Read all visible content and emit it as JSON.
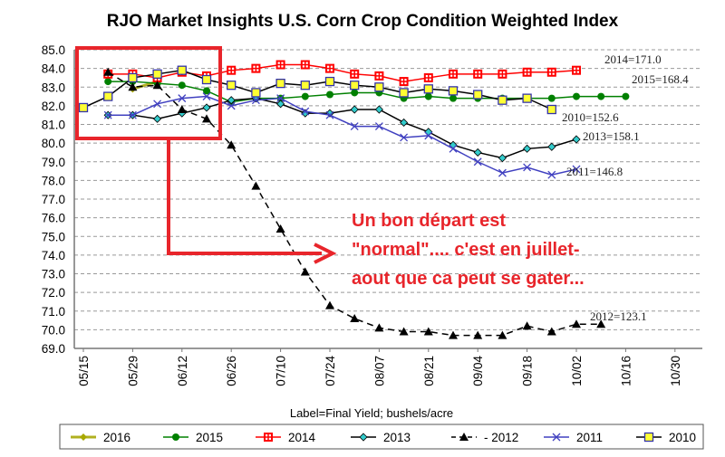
{
  "chart_data": {
    "type": "line",
    "title": "RJO Market Insights U.S. Corn Crop Condition Weighted Index",
    "xlabel": "Label=Final Yield; bushels/acre",
    "ylabel": "",
    "ylim": [
      69.0,
      85.0
    ],
    "y_ticks": [
      "85.0",
      "84.0",
      "83.0",
      "82.0",
      "81.0",
      "80.0",
      "79.0",
      "78.0",
      "77.0",
      "76.0",
      "75.0",
      "74.0",
      "73.0",
      "72.0",
      "71.0",
      "70.0",
      "69.0"
    ],
    "x_ticks": [
      "05/15",
      "05/29",
      "06/12",
      "06/26",
      "07/10",
      "07/24",
      "08/07",
      "08/21",
      "09/04",
      "09/18",
      "10/02",
      "10/16",
      "10/30"
    ],
    "x_unit": "weeks since 05/15",
    "grid": true,
    "legend_position": "bottom",
    "series": [
      {
        "name": "2016",
        "color": "#a8a800",
        "marker": "diamond",
        "start_week": 2,
        "values": [
          82.9,
          83.3
        ],
        "label": ""
      },
      {
        "name": "2015",
        "color": "#008000",
        "marker": "circle",
        "start_week": 1,
        "values": [
          83.3,
          83.3,
          83.2,
          83.1,
          82.8,
          82.2,
          82.4,
          82.4,
          82.5,
          82.6,
          82.7,
          82.7,
          82.4,
          82.5,
          82.4,
          82.4,
          82.4,
          82.4,
          82.4,
          82.5,
          82.5,
          82.5
        ],
        "label": "2015=168.4"
      },
      {
        "name": "2014",
        "color": "#ff0000",
        "marker": "plus-square",
        "start_week": 1,
        "values": [
          83.7,
          83.7,
          83.5,
          83.8,
          83.6,
          83.9,
          84.0,
          84.2,
          84.2,
          84.0,
          83.7,
          83.6,
          83.3,
          83.5,
          83.7,
          83.7,
          83.7,
          83.8,
          83.8,
          83.9
        ],
        "label": "2014=171.0"
      },
      {
        "name": "2013",
        "color": "#000000",
        "marker": "cyan-diamond",
        "start_week": 1,
        "values": [
          81.5,
          81.5,
          81.3,
          81.6,
          81.9,
          82.3,
          82.4,
          82.1,
          81.6,
          81.6,
          81.8,
          81.8,
          81.1,
          80.6,
          79.9,
          79.5,
          79.2,
          79.7,
          79.8,
          80.2
        ],
        "label": "2013=158.1"
      },
      {
        "name": "2012",
        "color": "#000000",
        "marker": "triangle",
        "dashed": true,
        "start_week": 1,
        "values": [
          83.8,
          83.0,
          83.1,
          81.8,
          81.3,
          79.9,
          77.7,
          75.4,
          73.1,
          71.3,
          70.6,
          70.1,
          69.9,
          69.9,
          69.7,
          69.7,
          69.7,
          70.2,
          69.9,
          70.3,
          70.3
        ],
        "label": "2012=123.1"
      },
      {
        "name": "2011",
        "color": "#4040c0",
        "marker": "x",
        "start_week": 1,
        "values": [
          81.5,
          81.5,
          82.1,
          82.4,
          82.5,
          82.0,
          82.3,
          82.4,
          81.7,
          81.5,
          80.9,
          80.9,
          80.3,
          80.4,
          79.7,
          79.0,
          78.4,
          78.7,
          78.3,
          78.6
        ],
        "label": "2011=146.8"
      },
      {
        "name": "2010",
        "color": "#000000",
        "marker": "yellow-square",
        "start_week": 0,
        "values": [
          81.9,
          82.5,
          83.5,
          83.7,
          83.9,
          83.4,
          83.1,
          82.7,
          83.2,
          83.1,
          83.3,
          83.1,
          83.0,
          82.7,
          82.9,
          82.8,
          82.6,
          82.3,
          82.4,
          81.8
        ],
        "label": "2010=152.6"
      }
    ],
    "legend_labels": [
      "2016",
      "2015",
      "2014",
      "2013",
      "- 2012",
      "2011",
      "2010"
    ],
    "annotation": {
      "lines": [
        "Un bon départ est",
        "\"normal\".... c'est en juillet-",
        "aout que ca peut se gater..."
      ],
      "color": "#e8252b"
    }
  }
}
